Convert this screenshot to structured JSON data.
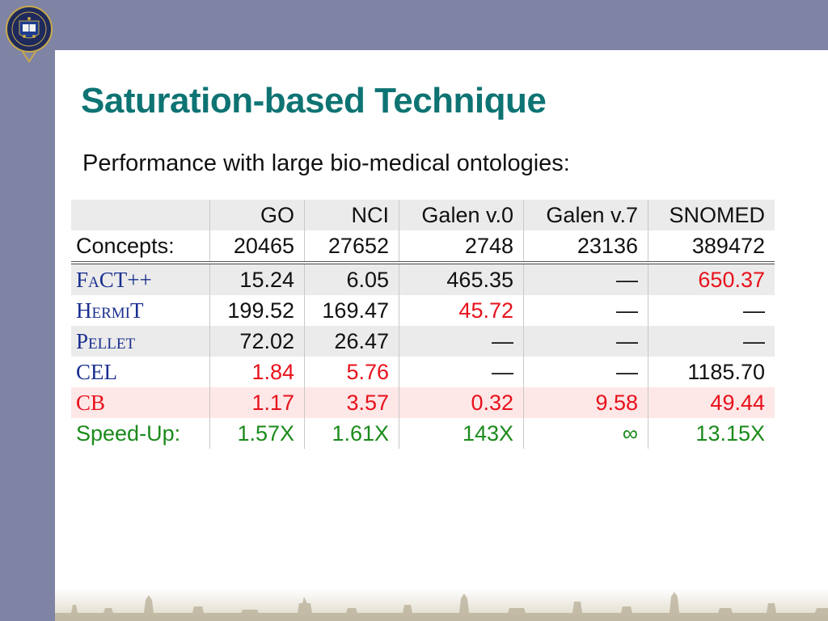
{
  "slide": {
    "title": "Saturation-based Technique",
    "subtitle": "Performance with large bio-medical ontologies:"
  },
  "colors": {
    "band": "#7f83a4",
    "title": "#0e7373",
    "system": "#1a2f8f",
    "highlight": "#e8111b",
    "speedup": "#1b8a1b"
  },
  "table": {
    "columns": [
      "",
      "GO",
      "NCI",
      "Galen v.0",
      "Galen v.7",
      "SNOMED"
    ],
    "concepts": {
      "label": "Concepts:",
      "values": [
        "20465",
        "27652",
        "2748",
        "23136",
        "389472"
      ]
    },
    "rows": [
      {
        "name": "FaCT++",
        "values": [
          "15.24",
          "6.05",
          "465.35",
          "—",
          "650.37"
        ]
      },
      {
        "name": "HermiT",
        "values": [
          "199.52",
          "169.47",
          "45.72",
          "—",
          "—"
        ]
      },
      {
        "name": "Pellet",
        "values": [
          "72.02",
          "26.47",
          "—",
          "—",
          "—"
        ]
      },
      {
        "name": "CEL",
        "values": [
          "1.84",
          "5.76",
          "—",
          "—",
          "1185.70"
        ]
      },
      {
        "name": "CB",
        "values": [
          "1.17",
          "3.57",
          "0.32",
          "9.58",
          "49.44"
        ]
      }
    ],
    "speedup": {
      "label": "Speed-Up:",
      "values": [
        "1.57X",
        "1.61X",
        "143X",
        "∞",
        "13.15X"
      ]
    }
  }
}
